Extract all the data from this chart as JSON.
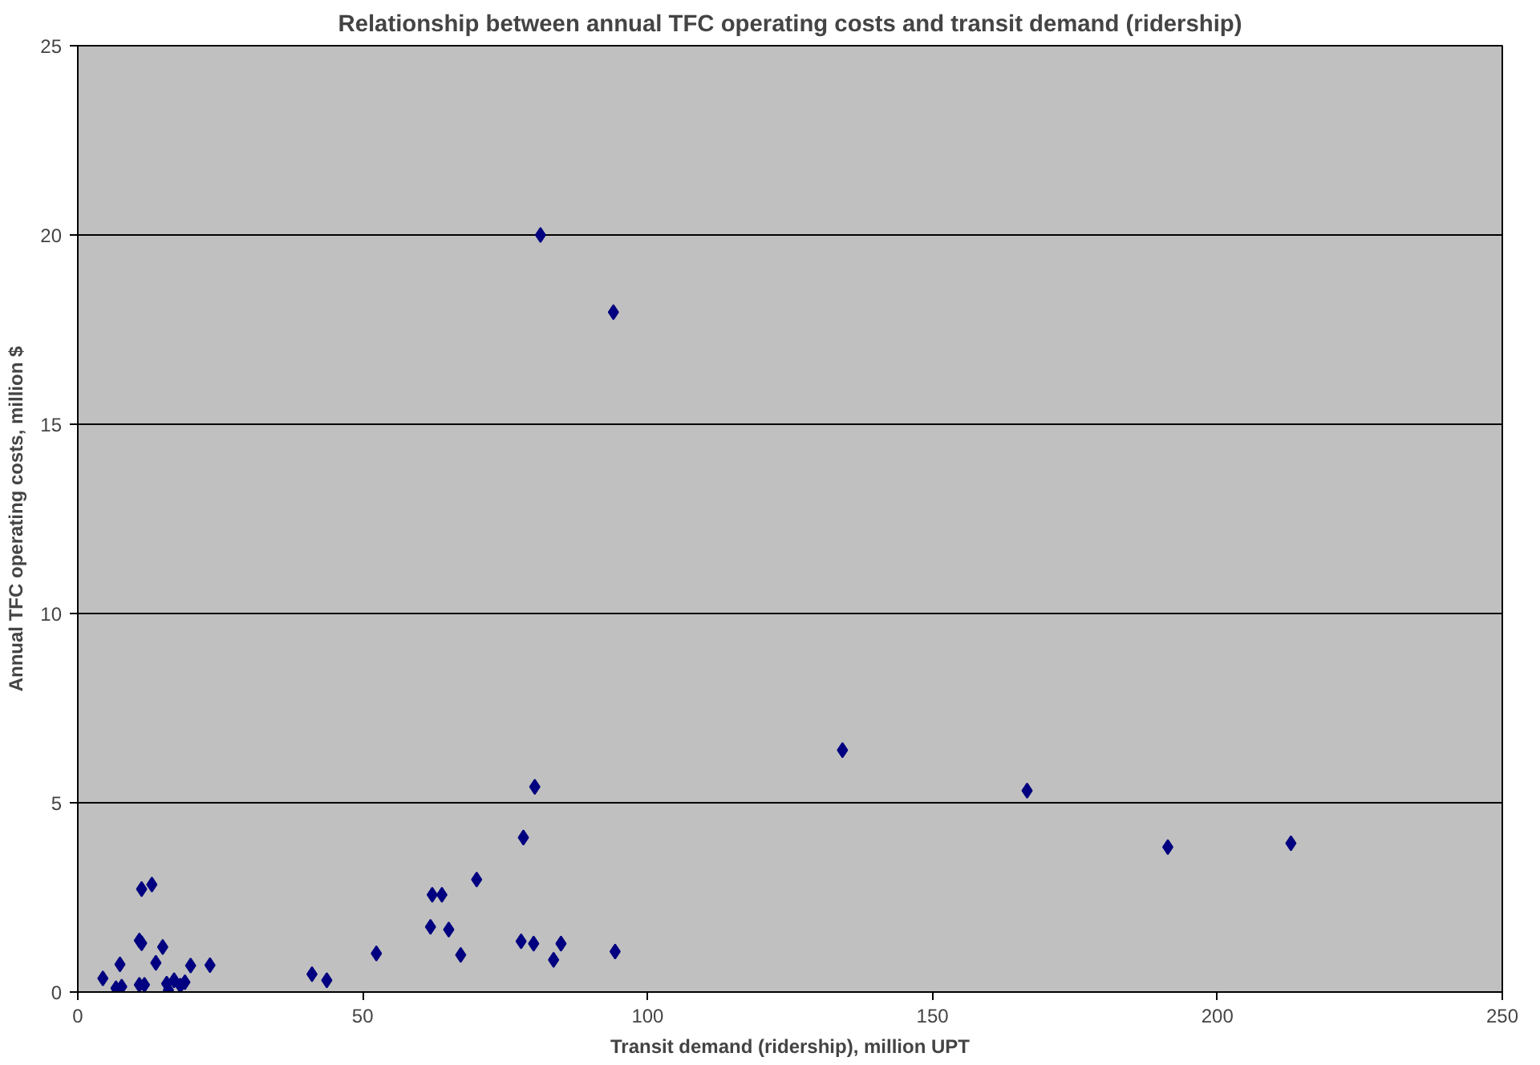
{
  "chart_data": {
    "type": "scatter",
    "title": "Relationship between annual TFC operating costs and transit demand (ridership)",
    "xlabel": "Transit demand (ridership), million UPT",
    "ylabel": "Annual TFC operating costs, million $",
    "x": [
      4.4,
      6.7,
      7.7,
      7.4,
      10.8,
      11.7,
      11.2,
      13.0,
      10.8,
      11.2,
      13.7,
      14.9,
      15.6,
      15.9,
      16.9,
      18.0,
      18.8,
      19.8,
      23.2,
      41.1,
      43.7,
      52.4,
      80.2,
      78.2,
      70.0,
      62.2,
      63.9,
      61.9,
      65.1,
      67.2,
      77.8,
      80.0,
      84.8,
      83.5,
      94.3,
      81.2,
      94.0,
      134.2,
      166.6,
      191.3,
      212.9
    ],
    "series": [
      {
        "color": "#000080",
        "values": [
          0.36,
          0.1,
          0.14,
          0.73,
          0.19,
          0.19,
          2.72,
          2.84,
          1.36,
          1.29,
          0.77,
          1.19,
          0.22,
          0.05,
          0.31,
          0.17,
          0.26,
          0.7,
          0.71,
          0.47,
          0.31,
          1.02,
          5.42,
          4.08,
          2.97,
          2.57,
          2.57,
          1.72,
          1.65,
          0.98,
          1.34,
          1.28,
          1.28,
          0.85,
          1.07,
          20.0,
          17.96,
          6.39,
          5.32,
          3.83,
          3.93
        ]
      }
    ],
    "xlim": [
      0,
      250
    ],
    "xticks": [
      0,
      50,
      100,
      150,
      200,
      250
    ],
    "ylim": [
      0,
      25
    ],
    "yticks": [
      0,
      5,
      10,
      15,
      20,
      25
    ],
    "grid": "y",
    "marker": "diamond"
  }
}
